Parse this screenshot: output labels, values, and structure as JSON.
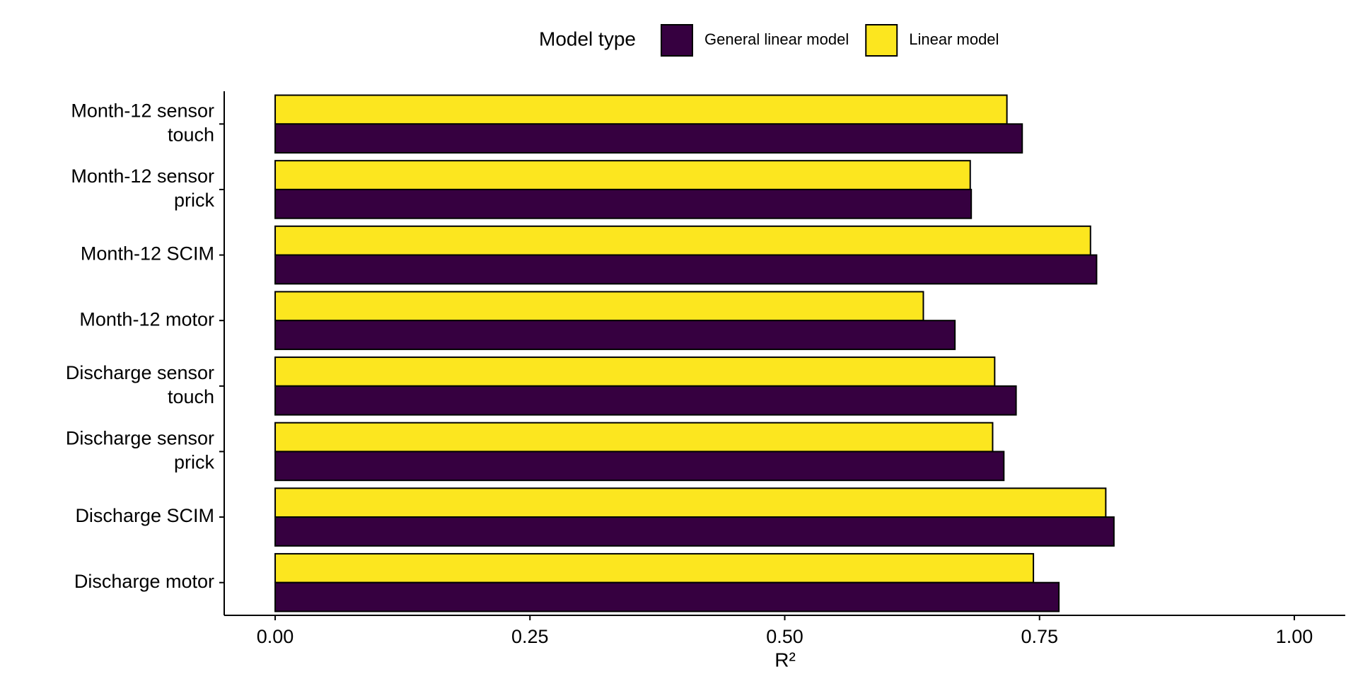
{
  "chart_data": {
    "type": "hbar",
    "legend_title": "Model type",
    "categories": [
      "Month-12 sensor\ntouch",
      "Month-12 sensor\nprick",
      "Month-12 SCIM",
      "Month-12 motor",
      "Discharge sensor\ntouch",
      "Discharge sensor\nprick",
      "Discharge SCIM",
      "Discharge motor"
    ],
    "series": [
      {
        "name": "General linear model",
        "color": "#360040",
        "values": [
          0.733,
          0.683,
          0.806,
          0.667,
          0.727,
          0.715,
          0.823,
          0.769
        ]
      },
      {
        "name": "Linear model",
        "color": "#fce61f",
        "values": [
          0.718,
          0.682,
          0.8,
          0.636,
          0.706,
          0.704,
          0.815,
          0.744
        ]
      }
    ],
    "xlabel": "R²",
    "xlim": [
      -0.05,
      1.05
    ],
    "xticks": [
      {
        "value": 0,
        "label": "0.00"
      },
      {
        "value": 0.25,
        "label": "0.25"
      },
      {
        "value": 0.5,
        "label": "0.50"
      },
      {
        "value": 0.75,
        "label": "0.75"
      },
      {
        "value": 1,
        "label": "1.00"
      }
    ],
    "legend": "top"
  }
}
